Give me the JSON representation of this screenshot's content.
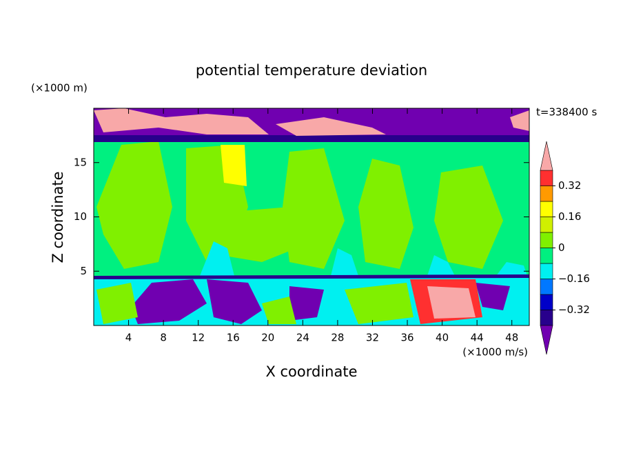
{
  "chart_data": {
    "type": "contour",
    "title": "potential temperature deviation",
    "x_label": "X coordinate",
    "y_label": "Z coordinate",
    "x_unit": "(×1000 m/s)",
    "y_unit": "(×1000 m)",
    "annotation": "t=338400 s",
    "xlim": [
      0,
      50
    ],
    "xticks": [
      4,
      8,
      12,
      16,
      20,
      24,
      28,
      32,
      36,
      40,
      44,
      48
    ],
    "ylim": [
      0,
      20
    ],
    "yticks": [
      5,
      10,
      15
    ],
    "levels": [
      -0.4,
      -0.32,
      -0.24,
      -0.16,
      -0.08,
      0,
      0.08,
      0.16,
      0.24,
      0.32,
      0.4
    ],
    "colors": [
      "#7000b0",
      "#28008c",
      "#0000c8",
      "#0078ff",
      "#00f0f0",
      "#00f080",
      "#80f000",
      "#d0f000",
      "#ffff00",
      "#ff9a00",
      "#ff3030",
      "#f8a8a8"
    ],
    "level_ticks": [
      0.32,
      0.16,
      0,
      {
        "value": -0.16,
        "label": "−0.16"
      },
      {
        "value": -0.32,
        "label": "−0.32"
      }
    ]
  }
}
